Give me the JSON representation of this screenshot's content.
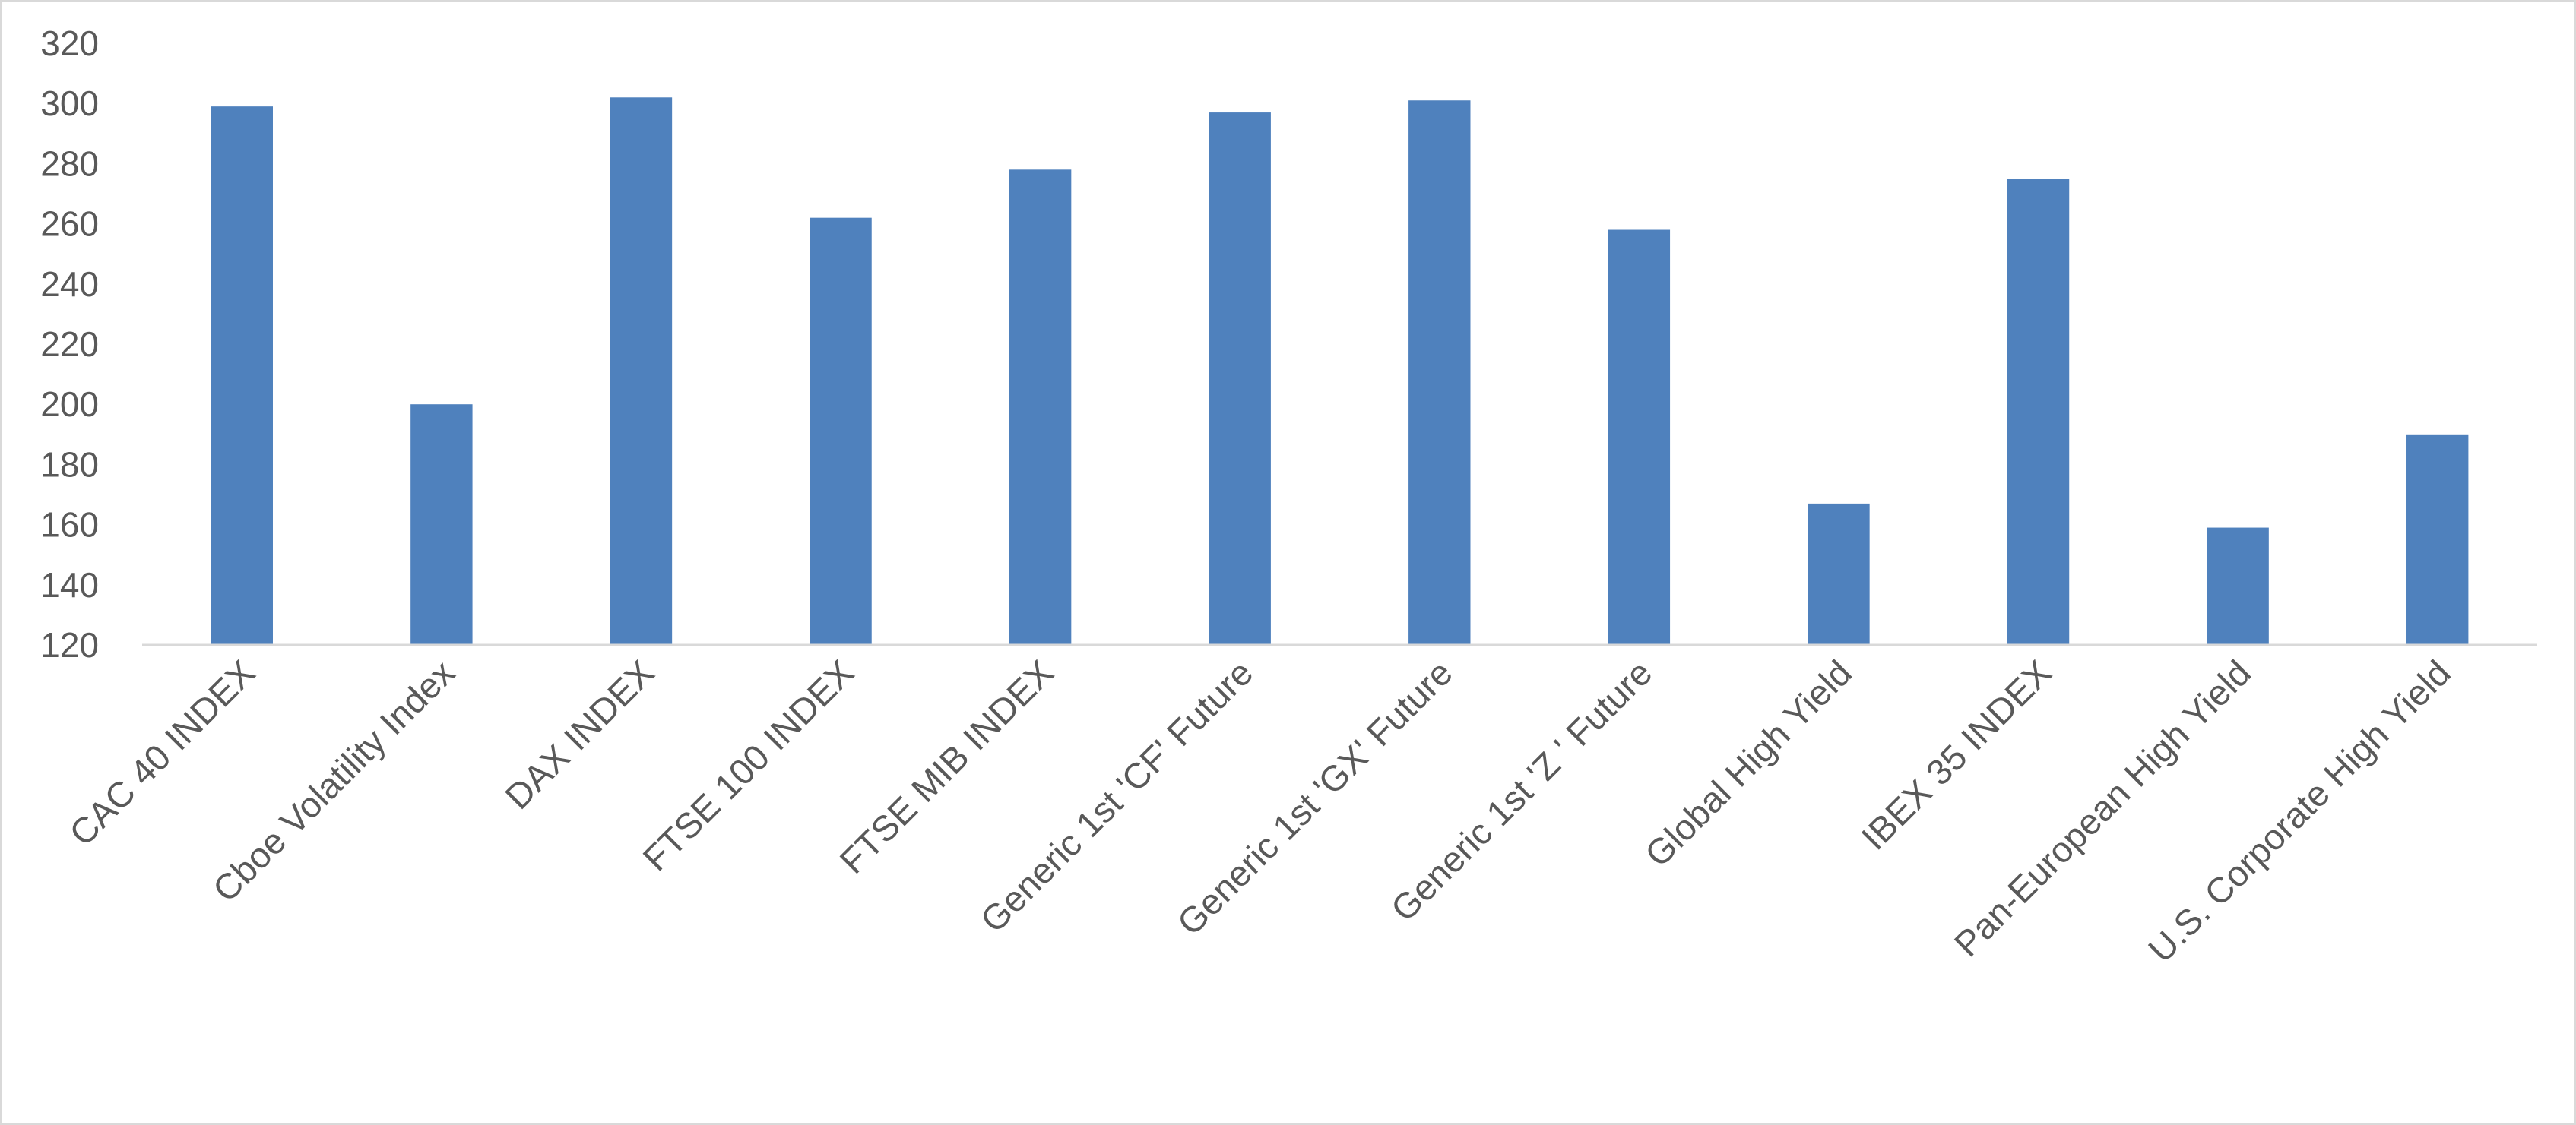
{
  "chart_data": {
    "type": "bar",
    "title": "",
    "xlabel": "",
    "ylabel": "",
    "categories": [
      "CAC 40 INDEX",
      "Cboe Volatility Index",
      "DAX INDEX",
      "FTSE 100 INDEX",
      "FTSE MIB INDEX",
      "Generic 1st 'CF' Future",
      "Generic 1st 'GX' Future",
      "Generic 1st 'Z ' Future",
      "Global High Yield",
      "IBEX 35 INDEX",
      "Pan-European High Yield",
      "U.S. Corporate High Yield"
    ],
    "values": [
      299,
      200,
      302,
      262,
      278,
      297,
      301,
      258,
      167,
      275,
      159,
      190
    ],
    "ylim": [
      120,
      320
    ],
    "yticks": [
      120,
      140,
      160,
      180,
      200,
      220,
      240,
      260,
      280,
      300,
      320
    ],
    "grid": false,
    "legend": "none",
    "colors": {
      "bar": "#4f81bd",
      "axis": "#d9d9d9",
      "text": "#595959",
      "border": "#d9d9d9"
    }
  }
}
